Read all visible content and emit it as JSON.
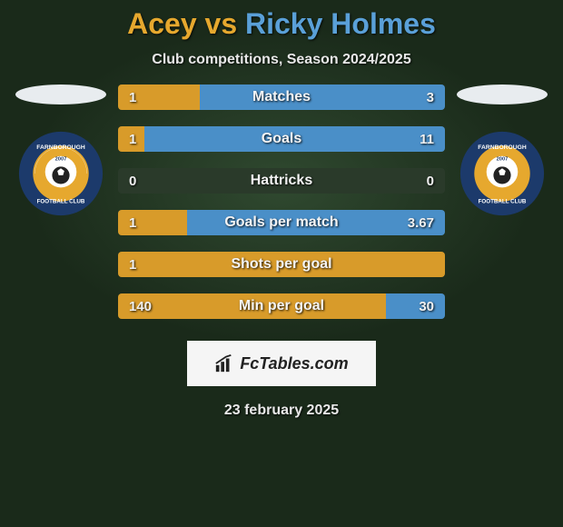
{
  "title": {
    "left": "Acey",
    "vs": " vs ",
    "right": "Ricky Holmes",
    "left_color": "#e6a82e",
    "right_color": "#5aa0d8"
  },
  "subtitle": "Club competitions, Season 2024/2025",
  "colors": {
    "background": "#1a2a1a",
    "bar_bg": "#2a3a2a",
    "left_bar": "#d89b2a",
    "right_bar": "#4a8fc8",
    "label_text": "#f4f4f4",
    "oval": "#e8ecef",
    "badge_outer": "#1c3a6b",
    "badge_inner": "#e6a82e",
    "badge_center": "#ffffff",
    "fctables_bg": "#f5f5f5"
  },
  "stats": [
    {
      "label": "Matches",
      "left_val": "1",
      "right_val": "3",
      "left_pct": 25,
      "right_pct": 75
    },
    {
      "label": "Goals",
      "left_val": "1",
      "right_val": "11",
      "left_pct": 8,
      "right_pct": 92
    },
    {
      "label": "Hattricks",
      "left_val": "0",
      "right_val": "0",
      "left_pct": 0,
      "right_pct": 0
    },
    {
      "label": "Goals per match",
      "left_val": "1",
      "right_val": "3.67",
      "left_pct": 21,
      "right_pct": 79
    },
    {
      "label": "Shots per goal",
      "left_val": "1",
      "right_val": "",
      "left_pct": 100,
      "right_pct": 0
    },
    {
      "label": "Min per goal",
      "left_val": "140",
      "right_val": "30",
      "left_pct": 82,
      "right_pct": 18
    }
  ],
  "badge": {
    "text_top": "FARNBOROUGH",
    "text_bottom": "FOOTBALL CLUB",
    "year": "2007"
  },
  "fctables": "FcTables.com",
  "date": "23 february 2025"
}
